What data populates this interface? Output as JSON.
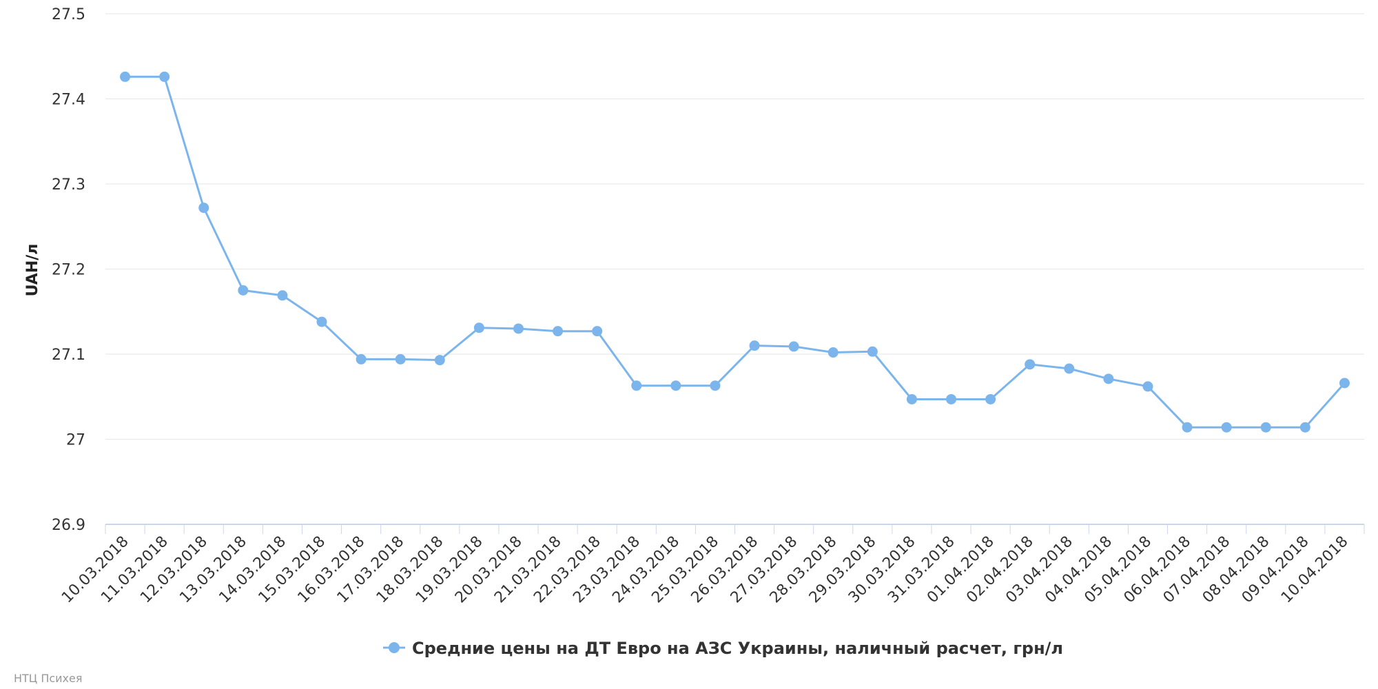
{
  "chart_data": {
    "type": "line",
    "title": "",
    "xlabel": "",
    "ylabel": "UAH/л",
    "ylim": [
      26.9,
      27.5
    ],
    "yticks": [
      "26.9",
      "27",
      "27.1",
      "27.2",
      "27.3",
      "27.4",
      "27.5"
    ],
    "grid": true,
    "legend_position": "bottom-center",
    "categories": [
      "10.03.2018",
      "11.03.2018",
      "12.03.2018",
      "13.03.2018",
      "14.03.2018",
      "15.03.2018",
      "16.03.2018",
      "17.03.2018",
      "18.03.2018",
      "19.03.2018",
      "20.03.2018",
      "21.03.2018",
      "22.03.2018",
      "23.03.2018",
      "24.03.2018",
      "25.03.2018",
      "26.03.2018",
      "27.03.2018",
      "28.03.2018",
      "29.03.2018",
      "30.03.2018",
      "31.03.2018",
      "01.04.2018",
      "02.04.2018",
      "03.04.2018",
      "04.04.2018",
      "05.04.2018",
      "06.04.2018",
      "07.04.2018",
      "08.04.2018",
      "09.04.2018",
      "10.04.2018"
    ],
    "series": [
      {
        "name": "Средние цены на ДТ Евро на АЗС Украины, наличный расчет, грн/л",
        "color": "#7cb5ec",
        "values": [
          27.426,
          27.426,
          27.272,
          27.175,
          27.169,
          27.138,
          27.094,
          27.094,
          27.093,
          27.131,
          27.13,
          27.127,
          27.127,
          27.063,
          27.063,
          27.063,
          27.11,
          27.109,
          27.102,
          27.103,
          27.047,
          27.047,
          27.047,
          27.088,
          27.083,
          27.071,
          27.062,
          27.014,
          27.014,
          27.014,
          27.014,
          27.066
        ]
      }
    ]
  },
  "credit": "НТЦ Психея",
  "colors": {
    "grid": "#e6e6e6",
    "axis": "#ccd6eb",
    "series": "#7cb5ec"
  }
}
